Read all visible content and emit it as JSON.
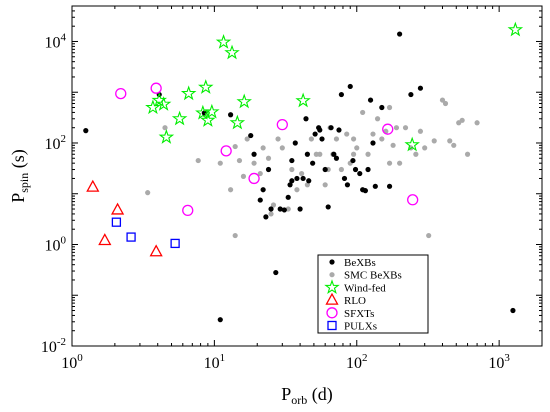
{
  "chart_data": {
    "type": "scatter",
    "xscale": "log",
    "yscale": "log",
    "xlim": [
      1,
      2000
    ],
    "ylim": [
      0.01,
      50000
    ],
    "xlabel": {
      "main": "P",
      "sub": "orb",
      "unit": " (d)"
    },
    "ylabel": {
      "main": "P",
      "sub": "spin",
      "unit": " (s)"
    },
    "x_ticks": [
      {
        "value": 1,
        "base": "10",
        "exp": "0"
      },
      {
        "value": 10,
        "base": "10",
        "exp": "1"
      },
      {
        "value": 100,
        "base": "10",
        "exp": "2"
      },
      {
        "value": 1000,
        "base": "10",
        "exp": "3"
      }
    ],
    "y_ticks": [
      {
        "value": 0.01,
        "base": "10",
        "exp": "-2"
      },
      {
        "value": 1,
        "base": "10",
        "exp": "0"
      },
      {
        "value": 100,
        "base": "10",
        "exp": "2"
      },
      {
        "value": 10000,
        "base": "10",
        "exp": "4"
      }
    ],
    "legend_position": "bottom-right",
    "grid": false,
    "series": [
      {
        "name": "SMC BeXBs",
        "marker": "dot",
        "color": "#aaaaaa",
        "points": [
          [
            3.4,
            10.5
          ],
          [
            4.5,
            200
          ],
          [
            7.7,
            45
          ],
          [
            11,
            40
          ],
          [
            13,
            12
          ],
          [
            14,
            85
          ],
          [
            15,
            45
          ],
          [
            16,
            22
          ],
          [
            17,
            120
          ],
          [
            19,
            40
          ],
          [
            21,
            25
          ],
          [
            22,
            80
          ],
          [
            24,
            50
          ],
          [
            26,
            6
          ],
          [
            28,
            120
          ],
          [
            30,
            80
          ],
          [
            33,
            5
          ],
          [
            35,
            30
          ],
          [
            38,
            12
          ],
          [
            41,
            25
          ],
          [
            45,
            15
          ],
          [
            48,
            120
          ],
          [
            52,
            60
          ],
          [
            55,
            60
          ],
          [
            60,
            15
          ],
          [
            63,
            30
          ],
          [
            68,
            60
          ],
          [
            72,
            120
          ],
          [
            78,
            30
          ],
          [
            85,
            150
          ],
          [
            90,
            40
          ],
          [
            95,
            120
          ],
          [
            100,
            80
          ],
          [
            110,
            400
          ],
          [
            120,
            60
          ],
          [
            130,
            150
          ],
          [
            140,
            300
          ],
          [
            150,
            120
          ],
          [
            160,
            170
          ],
          [
            170,
            500
          ],
          [
            180,
            90
          ],
          [
            190,
            200
          ],
          [
            200,
            40
          ],
          [
            220,
            200
          ],
          [
            240,
            80
          ],
          [
            260,
            60
          ],
          [
            280,
            170
          ],
          [
            300,
            80
          ],
          [
            320,
            1.5
          ],
          [
            350,
            110
          ],
          [
            400,
            700
          ],
          [
            420,
            600
          ],
          [
            450,
            110
          ],
          [
            480,
            90
          ],
          [
            520,
            250
          ],
          [
            550,
            280
          ],
          [
            600,
            60
          ],
          [
            700,
            250
          ],
          [
            14,
            1.5
          ],
          [
            25,
            4
          ],
          [
            95,
            60
          ],
          [
            65,
            200
          ],
          [
            170,
            40
          ]
        ]
      },
      {
        "name": "BeXBs",
        "marker": "dot",
        "color": "#000000",
        "points": [
          [
            1.25,
            175
          ],
          [
            4.1,
            900
          ],
          [
            8.5,
            390
          ],
          [
            11,
            0.033
          ],
          [
            13,
            360
          ],
          [
            18,
            140
          ],
          [
            19,
            60
          ],
          [
            21,
            7.5
          ],
          [
            22,
            12
          ],
          [
            23,
            3.5
          ],
          [
            24,
            30
          ],
          [
            25,
            5
          ],
          [
            27,
            0.28
          ],
          [
            29,
            5
          ],
          [
            31,
            4.8
          ],
          [
            33,
            8.5
          ],
          [
            34,
            15
          ],
          [
            35,
            18
          ],
          [
            37,
            100
          ],
          [
            38,
            20
          ],
          [
            40,
            5
          ],
          [
            42,
            20
          ],
          [
            44,
            300
          ],
          [
            46,
            18
          ],
          [
            49,
            40
          ],
          [
            51,
            150
          ],
          [
            54,
            200
          ],
          [
            57,
            120
          ],
          [
            60,
            30
          ],
          [
            63,
            5.5
          ],
          [
            66,
            200
          ],
          [
            69,
            60
          ],
          [
            72,
            50
          ],
          [
            75,
            180
          ],
          [
            78,
            900
          ],
          [
            82,
            20
          ],
          [
            86,
            15
          ],
          [
            90,
            1300
          ],
          [
            94,
            45
          ],
          [
            98,
            30
          ],
          [
            105,
            25
          ],
          [
            110,
            12
          ],
          [
            115,
            11.5
          ],
          [
            125,
            700
          ],
          [
            135,
            14
          ],
          [
            150,
            500
          ],
          [
            170,
            14
          ],
          [
            200,
            14000
          ],
          [
            240,
            900
          ],
          [
            280,
            1200
          ],
          [
            1250,
            0.05
          ],
          [
            35,
            45
          ],
          [
            45,
            60
          ],
          [
            55,
            180
          ],
          [
            120,
            30
          ],
          [
            130,
            100
          ]
        ]
      },
      {
        "name": "Wind-fed",
        "marker": "star",
        "color": "#00ee00",
        "points": [
          [
            3.7,
            500
          ],
          [
            4.1,
            690
          ],
          [
            4.4,
            580
          ],
          [
            4.6,
            130
          ],
          [
            5.7,
            300
          ],
          [
            6.6,
            940
          ],
          [
            8.3,
            390
          ],
          [
            8.7,
            1250
          ],
          [
            9.0,
            280
          ],
          [
            9.6,
            410
          ],
          [
            11.6,
            9700
          ],
          [
            13.3,
            6000
          ],
          [
            14.5,
            250
          ],
          [
            16.2,
            650
          ],
          [
            42,
            680
          ],
          [
            245,
            92
          ],
          [
            1300,
            17000
          ]
        ]
      },
      {
        "name": "RLO",
        "marker": "triangle",
        "color": "#ff0000",
        "points": [
          [
            1.4,
            13.5
          ],
          [
            1.7,
            1.2
          ],
          [
            2.09,
            4.8
          ],
          [
            3.9,
            0.72
          ]
        ]
      },
      {
        "name": "SFXTs",
        "marker": "circle",
        "color": "#ff00ff",
        "points": [
          [
            2.2,
            940
          ],
          [
            3.9,
            1200
          ],
          [
            6.5,
            4.7
          ],
          [
            12.1,
            70
          ],
          [
            19,
            20
          ],
          [
            30,
            230
          ],
          [
            165,
            187
          ],
          [
            247,
            7.6
          ]
        ]
      },
      {
        "name": "PULXs",
        "marker": "square",
        "color": "#0000ff",
        "points": [
          [
            2.05,
            2.75
          ],
          [
            2.6,
            1.4
          ],
          [
            5.3,
            1.05
          ]
        ]
      }
    ],
    "legend": [
      {
        "label": "BeXBs",
        "marker": "dot",
        "color": "#000000"
      },
      {
        "label": "SMC BeXBs",
        "marker": "dot",
        "color": "#aaaaaa"
      },
      {
        "label": "Wind-fed",
        "marker": "star",
        "color": "#00ee00"
      },
      {
        "label": "RLO",
        "marker": "triangle",
        "color": "#ff0000"
      },
      {
        "label": "SFXTs",
        "marker": "circle",
        "color": "#ff00ff"
      },
      {
        "label": "PULXs",
        "marker": "square",
        "color": "#0000ff"
      }
    ]
  }
}
